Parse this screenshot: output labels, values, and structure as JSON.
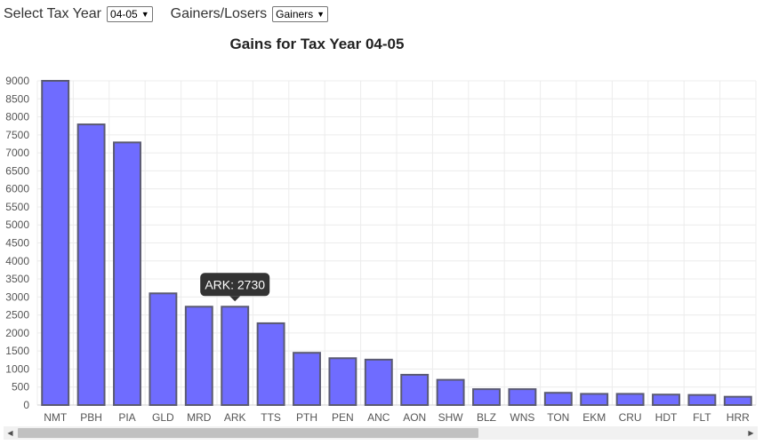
{
  "controls": {
    "tax_year_label": "Select Tax Year",
    "tax_year_value": "04-05",
    "gl_label": "Gainers/Losers",
    "gl_value": "Gainers"
  },
  "tooltip": {
    "text": "ARK: 2730",
    "category": "ARK"
  },
  "chart_data": {
    "type": "bar",
    "title": "Gains for Tax Year 04-05",
    "categories": [
      "NMT",
      "PBH",
      "PIA",
      "GLD",
      "MRD",
      "ARK",
      "TTS",
      "PTH",
      "PEN",
      "ANC",
      "AON",
      "SHW",
      "BLZ",
      "WNS",
      "TON",
      "EKM",
      "CRU",
      "HDT",
      "FLT",
      "HRR"
    ],
    "values": [
      9000,
      7790,
      7290,
      3100,
      2730,
      2730,
      2270,
      1450,
      1300,
      1260,
      840,
      700,
      440,
      440,
      340,
      310,
      310,
      290,
      280,
      230
    ],
    "ylim": [
      0,
      9000
    ],
    "yticks": [
      0,
      500,
      1000,
      1500,
      2000,
      2500,
      3000,
      3500,
      4000,
      4500,
      5000,
      5500,
      6000,
      6500,
      7000,
      7500,
      8000,
      8500,
      9000
    ],
    "grid": true,
    "colors": {
      "bar_fill": "#6f6cff",
      "bar_stroke": "#5a5a72",
      "grid": "#ececec",
      "tooltip_bg": "#333333"
    }
  }
}
